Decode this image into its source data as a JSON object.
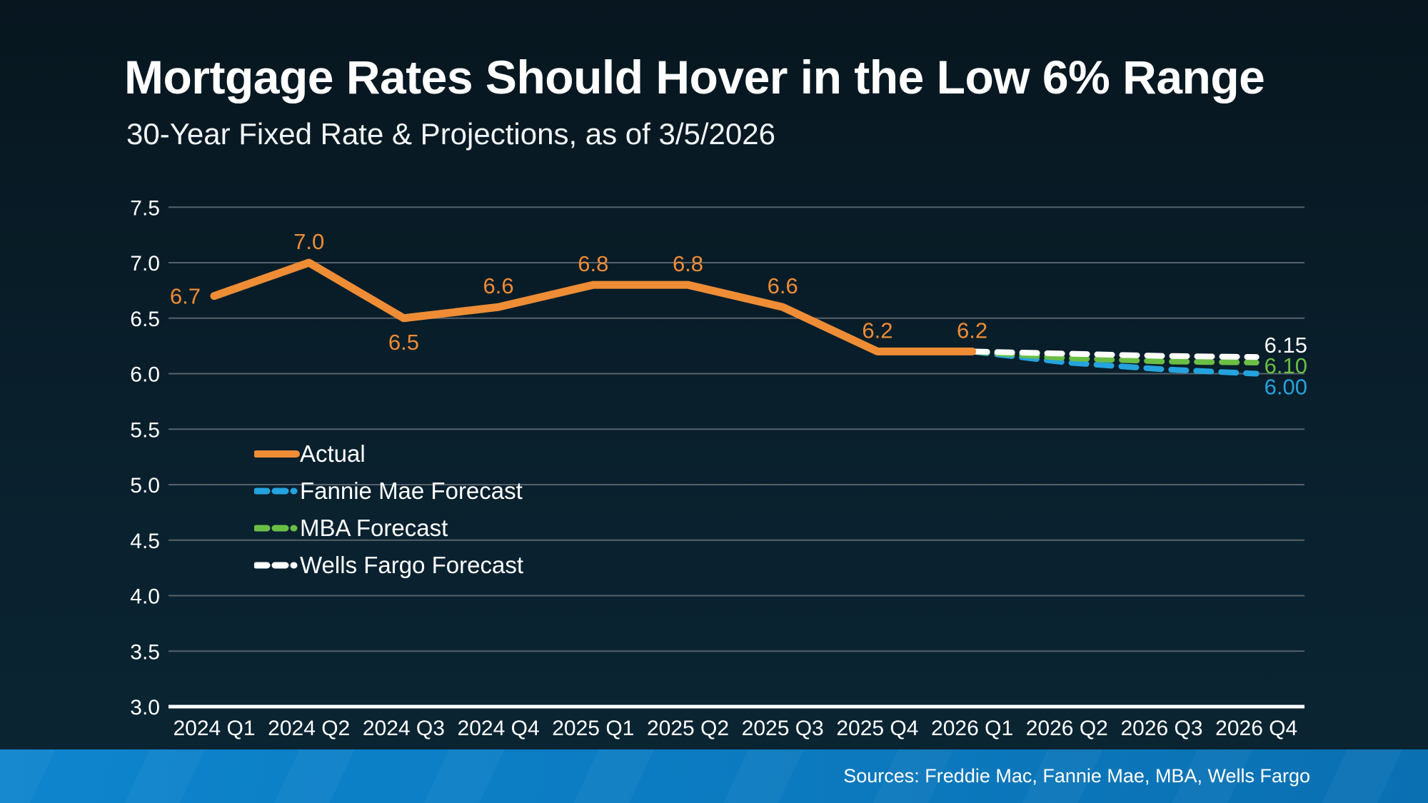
{
  "header": {
    "title": "Mortgage Rates Should Hover in the Low 6% Range",
    "subtitle": "30-Year Fixed Rate & Projections, as of 3/5/2026"
  },
  "footer": {
    "sources": "Sources: Freddie Mac, Fannie Mae, MBA, Wells Fargo"
  },
  "colors": {
    "background_top": "#07161f",
    "background_bottom": "#0b2533",
    "actual_orange": "#ee8d36",
    "fannie_blue": "#24a3de",
    "mba_green": "#6bbe45",
    "wells_white": "#ffffff",
    "gridline": "#55626c",
    "axis_line": "#ffffff",
    "footer_bar": "#0c7cc2",
    "text": "#ffffff"
  },
  "chart_data": {
    "type": "line",
    "title": "30-Year Fixed Rate & Projections, as of 3/5/2026",
    "xlabel": "",
    "ylabel": "",
    "ylim": [
      3.0,
      7.5
    ],
    "ytick_step": 0.5,
    "grid": true,
    "legend_position": "inside-left",
    "yticks": [
      "7.5",
      "7.0",
      "6.5",
      "6.0",
      "5.5",
      "5.0",
      "4.5",
      "4.0",
      "3.5",
      "3.0"
    ],
    "categories": [
      "2024 Q1",
      "2024 Q2",
      "2024 Q3",
      "2024 Q4",
      "2025 Q1",
      "2025 Q2",
      "2025 Q3",
      "2025 Q4",
      "2026 Q1",
      "2026 Q2",
      "2026 Q3",
      "2026 Q4"
    ],
    "series": [
      {
        "name": "Actual",
        "style": "solid",
        "color": "#ee8d36",
        "x": [
          0,
          1,
          2,
          3,
          4,
          5,
          6,
          7,
          8
        ],
        "values": [
          6.7,
          7.0,
          6.5,
          6.6,
          6.8,
          6.8,
          6.6,
          6.2,
          6.2
        ],
        "labels": [
          "6.7",
          "7.0",
          "6.5",
          "6.6",
          "6.8",
          "6.8",
          "6.6",
          "6.2",
          "6.2"
        ]
      },
      {
        "name": "Fannie Mae Forecast",
        "style": "dashed",
        "color": "#24a3de",
        "x": [
          8,
          9,
          10,
          11
        ],
        "values": [
          6.2,
          6.1,
          6.04,
          6.0
        ],
        "end_label": "6.00"
      },
      {
        "name": "MBA Forecast",
        "style": "dashed",
        "color": "#6bbe45",
        "x": [
          8,
          9,
          10,
          11
        ],
        "values": [
          6.2,
          6.14,
          6.11,
          6.1
        ],
        "end_label": "6.10"
      },
      {
        "name": "Wells Fargo Forecast",
        "style": "dashed",
        "color": "#ffffff",
        "x": [
          8,
          9,
          10,
          11
        ],
        "values": [
          6.2,
          6.18,
          6.16,
          6.15
        ],
        "end_label": "6.15"
      }
    ]
  }
}
